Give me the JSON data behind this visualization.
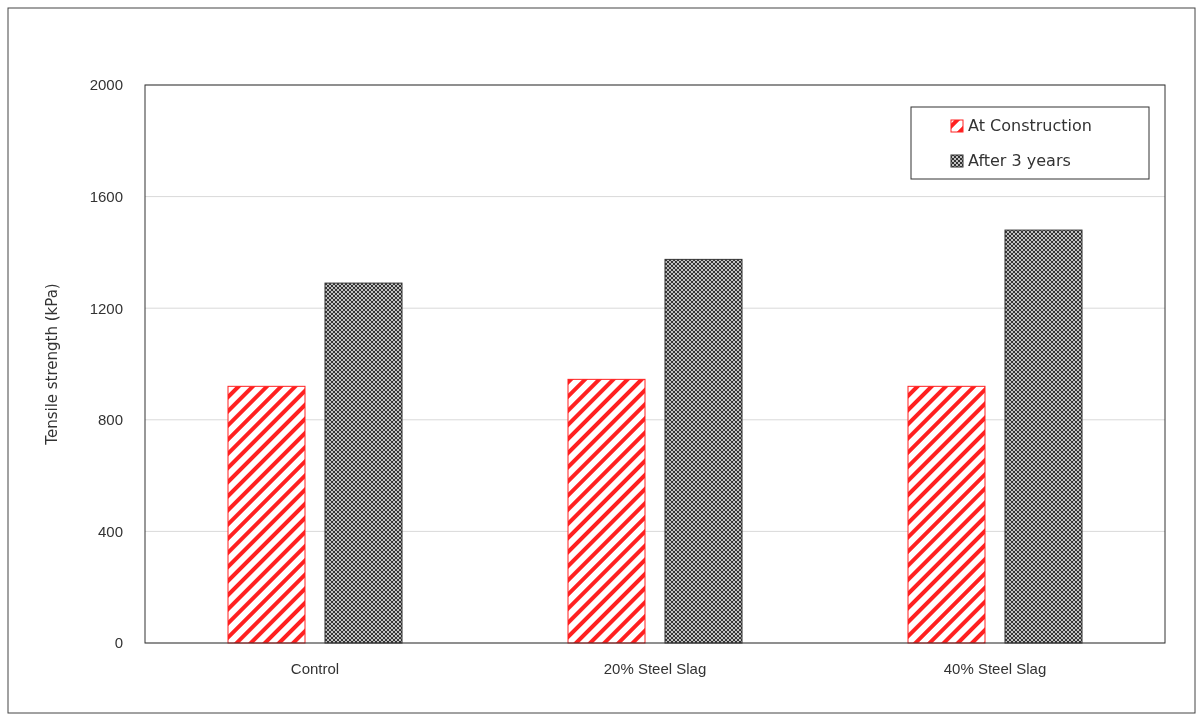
{
  "chart_data": {
    "type": "bar",
    "ylabel": "Tensile strength (kPa)",
    "categories": [
      "Control",
      "20% Steel Slag",
      "40% Steel Slag"
    ],
    "series": [
      {
        "name": "At Construction",
        "color": "#ff2020",
        "values": [
          920,
          945,
          920
        ]
      },
      {
        "name": "After 3 years",
        "color": "#333333",
        "values": [
          1290,
          1375,
          1480
        ]
      }
    ],
    "ylim": [
      0,
      2000
    ],
    "yticks": [
      0,
      400,
      800,
      1200,
      1600,
      2000
    ],
    "grid": "y",
    "legend": "top right"
  }
}
